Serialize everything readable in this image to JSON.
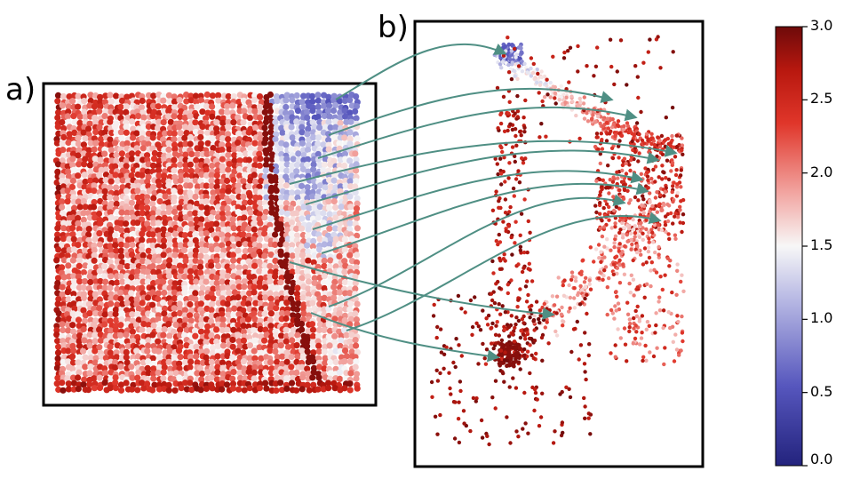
{
  "panels": {
    "a": {
      "label": "a)"
    },
    "b": {
      "label": "b)"
    }
  },
  "colorbar": {
    "min": 0.0,
    "max": 3.0,
    "ticks": [
      "3.0",
      "2.5",
      "2.0",
      "1.5",
      "1.0",
      "0.5",
      "0.0"
    ],
    "colormap": [
      "#2a2a8c",
      "#5b5bc2",
      "#b7b9e3",
      "#f6f6f6",
      "#f3a0a0",
      "#e33a2a",
      "#c01a10",
      "#7a0c0c"
    ]
  },
  "colors": {
    "arrow": "#4f8f84",
    "frame": "#000000"
  },
  "arrow_count": 11
}
